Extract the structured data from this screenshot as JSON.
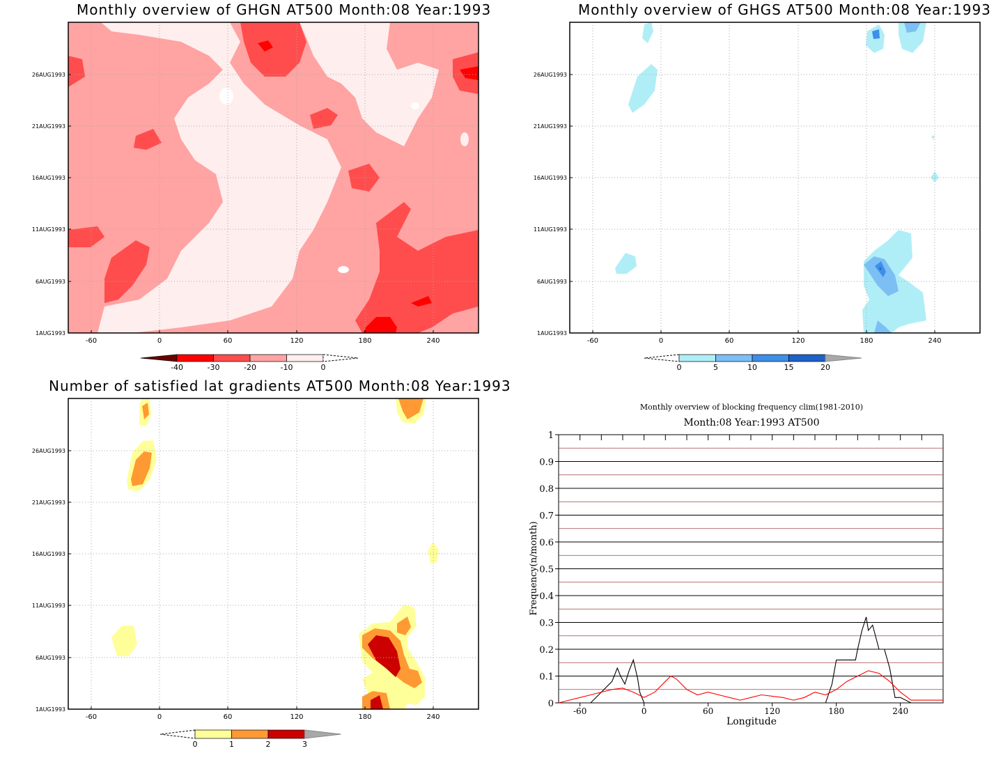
{
  "panels": [
    {
      "title": "Monthly overview of GHGN AT500 Month:08 Year:1993",
      "y_ticks": [
        "1AUG1993",
        "6AUG1993",
        "11AUG1993",
        "16AUG1993",
        "21AUG1993",
        "26AUG1993"
      ],
      "x_ticks": [
        "-60",
        "0",
        "60",
        "120",
        "180",
        "240"
      ],
      "colorbar": {
        "labels": [
          "-40",
          "-30",
          "-20",
          "-10",
          "0"
        ],
        "colors": [
          "#6b0000",
          "#ff0000",
          "#ff4d4d",
          "#ffa3a3",
          "#ffeeee"
        ]
      }
    },
    {
      "title": "Monthly overview of GHGS AT500 Month:08 Year:1993",
      "y_ticks": [
        "1AUG1993",
        "6AUG1993",
        "11AUG1993",
        "16AUG1993",
        "21AUG1993",
        "26AUG1993"
      ],
      "x_ticks": [
        "-60",
        "0",
        "60",
        "120",
        "180",
        "240"
      ],
      "colorbar": {
        "labels": [
          "0",
          "5",
          "10",
          "15",
          "20"
        ],
        "colors": [
          "#b0eef7",
          "#7cbff5",
          "#3d8fe8",
          "#1e62c8",
          "#a8a8a8"
        ]
      }
    },
    {
      "title": "Number of satisfied lat gradients AT500 Month:08 Year:1993",
      "y_ticks": [
        "1AUG1993",
        "6AUG1993",
        "11AUG1993",
        "16AUG1993",
        "21AUG1993",
        "26AUG1993"
      ],
      "x_ticks": [
        "-60",
        "0",
        "60",
        "120",
        "180",
        "240"
      ],
      "colorbar": {
        "labels": [
          "0",
          "1",
          "2",
          "3"
        ],
        "colors": [
          "#ffff99",
          "#ff9933",
          "#cc0000",
          "#a8a8a8"
        ]
      }
    }
  ],
  "chart_data": {
    "type": "line",
    "title": "Monthly overview of blocking frequency clim(1981-2010)",
    "subtitle": "Month:08 Year:1993  AT500",
    "xlabel": "Longitude",
    "ylabel": "Frequency(n/month)",
    "x_ticks": [
      "-60",
      "0",
      "60",
      "120",
      "180",
      "240"
    ],
    "y_ticks": [
      "0",
      "0.1",
      "0.2",
      "0.3",
      "0.4",
      "0.5",
      "0.6",
      "0.7",
      "0.8",
      "0.9",
      "1"
    ],
    "xlim": [
      -80,
      280
    ],
    "ylim": [
      0,
      1
    ],
    "grid": true,
    "series": [
      {
        "color": "#000000",
        "x": [
          -80,
          -72,
          -50,
          -30,
          -25,
          -22,
          -18,
          -14,
          -10,
          -6,
          -4,
          0,
          170,
          176,
          180,
          198,
          200,
          204,
          208,
          210,
          214,
          220,
          225,
          230,
          235,
          240,
          250,
          280
        ],
        "y": [
          0,
          0,
          0,
          0.08,
          0.13,
          0.1,
          0.07,
          0.12,
          0.16,
          0.09,
          0.04,
          0,
          0,
          0.07,
          0.16,
          0.16,
          0.2,
          0.27,
          0.32,
          0.27,
          0.29,
          0.2,
          0.2,
          0.13,
          0.02,
          0.02,
          0,
          0
        ]
      },
      {
        "color": "#ff0000",
        "x": [
          -80,
          -70,
          -60,
          -50,
          -40,
          -30,
          -20,
          -10,
          0,
          10,
          20,
          25,
          30,
          40,
          50,
          60,
          70,
          80,
          90,
          100,
          110,
          120,
          130,
          140,
          150,
          160,
          170,
          180,
          190,
          200,
          210,
          220,
          230,
          240,
          250,
          260,
          270,
          280
        ],
        "y": [
          0,
          0.01,
          0.02,
          0.03,
          0.04,
          0.05,
          0.055,
          0.04,
          0.02,
          0.04,
          0.08,
          0.1,
          0.09,
          0.05,
          0.03,
          0.04,
          0.03,
          0.02,
          0.01,
          0.02,
          0.03,
          0.025,
          0.02,
          0.01,
          0.02,
          0.04,
          0.03,
          0.05,
          0.08,
          0.1,
          0.12,
          0.11,
          0.08,
          0.04,
          0.01,
          0.01,
          0.01,
          0.01
        ]
      }
    ],
    "reference_lines": {
      "color": "#a04040",
      "y": [
        0.05,
        0.15,
        0.25,
        0.35,
        0.45,
        0.55,
        0.65,
        0.75,
        0.85,
        0.95
      ]
    }
  }
}
